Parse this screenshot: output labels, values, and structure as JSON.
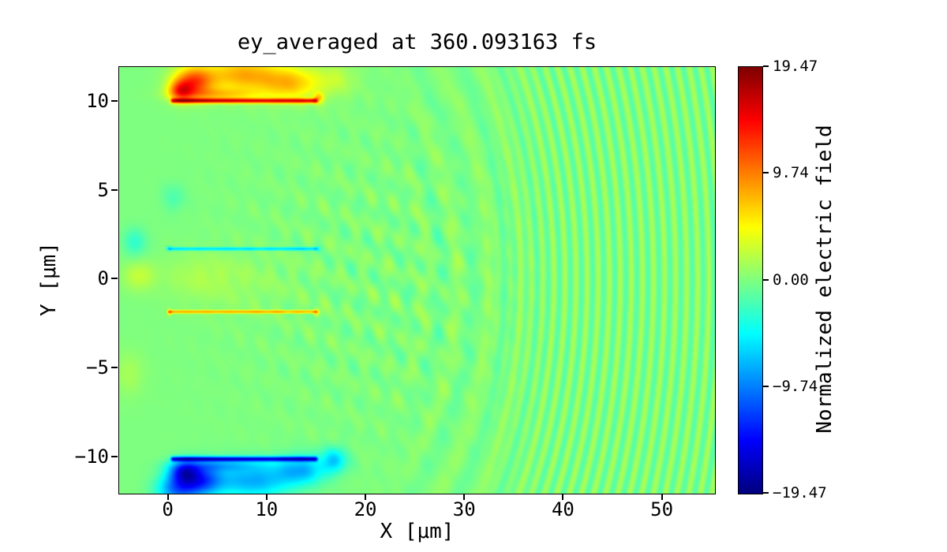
{
  "chart_data": {
    "type": "heatmap",
    "title": "ey_averaged at 360.093163 fs",
    "xlabel": "X [μm]",
    "ylabel": "Y [μm]",
    "colorbar_label": "Normalized electric field",
    "colormap": "jet",
    "vmin": -19.47,
    "vmax": 19.47,
    "xlim": [
      -5.0,
      55.3
    ],
    "ylim": [
      -12.05,
      11.95
    ],
    "grid": false,
    "x_ticks": [
      {
        "value": 0,
        "label": "0"
      },
      {
        "value": 10,
        "label": "10"
      },
      {
        "value": 20,
        "label": "20"
      },
      {
        "value": 30,
        "label": "30"
      },
      {
        "value": 40,
        "label": "40"
      },
      {
        "value": 50,
        "label": "50"
      }
    ],
    "y_ticks": [
      {
        "value": 10,
        "label": "10"
      },
      {
        "value": 5,
        "label": "5"
      },
      {
        "value": 0,
        "label": "0"
      },
      {
        "value": -5,
        "label": "−5"
      },
      {
        "value": -10,
        "label": "−10"
      }
    ],
    "colorbar_ticks": [
      {
        "value": 19.47,
        "label": "19.47"
      },
      {
        "value": 9.74,
        "label": "9.74"
      },
      {
        "value": 0,
        "label": "0.00"
      },
      {
        "value": -9.74,
        "label": "−9.74"
      },
      {
        "value": -19.47,
        "label": "−19.47"
      }
    ],
    "background_value": 0,
    "features": [
      {
        "kind": "hline",
        "y": 10.05,
        "x0": 0,
        "x1": 15.3,
        "sy": 0.13,
        "amp": 14
      },
      {
        "kind": "gauss",
        "x": 1.2,
        "y": 10.6,
        "sx": 1.2,
        "sy": 0.55,
        "amp": 9
      },
      {
        "kind": "gauss",
        "x": 2.5,
        "y": 11.1,
        "sx": 2.0,
        "sy": 0.85,
        "amp": 11
      },
      {
        "kind": "gauss",
        "x": 7.5,
        "y": 11.5,
        "sx": 4.0,
        "sy": 1.0,
        "amp": 8
      },
      {
        "kind": "gauss",
        "x": 12.5,
        "y": 11.0,
        "sx": 3.0,
        "sy": 0.9,
        "amp": 6.5
      },
      {
        "kind": "gauss",
        "x": 15.2,
        "y": 10.2,
        "sx": 0.5,
        "sy": 0.3,
        "amp": 6
      },
      {
        "kind": "gauss",
        "x": 5.0,
        "y": 10.4,
        "sx": 4.0,
        "sy": 0.35,
        "amp": 5
      },
      {
        "kind": "gauss",
        "x": 17.0,
        "y": 11.3,
        "sx": 2.0,
        "sy": 1.0,
        "amp": 2
      },
      {
        "kind": "hline",
        "y": -10.1,
        "x0": 0,
        "x1": 15.3,
        "sy": 0.13,
        "amp": -14
      },
      {
        "kind": "gauss",
        "x": 1.5,
        "y": -10.8,
        "sx": 1.5,
        "sy": 0.6,
        "amp": -10
      },
      {
        "kind": "gauss",
        "x": 3.2,
        "y": -11.3,
        "sx": 2.2,
        "sy": 0.9,
        "amp": -11
      },
      {
        "kind": "gauss",
        "x": 8.5,
        "y": -11.3,
        "sx": 4.0,
        "sy": 1.0,
        "amp": -8
      },
      {
        "kind": "gauss",
        "x": 13.5,
        "y": -10.7,
        "sx": 2.5,
        "sy": 0.8,
        "amp": -7
      },
      {
        "kind": "gauss",
        "x": 16.8,
        "y": -10.15,
        "sx": 1.3,
        "sy": 0.7,
        "amp": -6
      },
      {
        "kind": "gauss",
        "x": 5.0,
        "y": -10.45,
        "sx": 4.0,
        "sy": 0.35,
        "amp": -5
      },
      {
        "kind": "gauss",
        "x": 0.8,
        "y": -11.8,
        "sx": 2.0,
        "sy": 0.8,
        "amp": -9
      },
      {
        "kind": "hline",
        "y": 1.72,
        "x0": -0.3,
        "x1": 15.3,
        "sy": 0.09,
        "amp": -6.5
      },
      {
        "kind": "hline",
        "y": -1.82,
        "x0": -0.3,
        "x1": 15.3,
        "sy": 0.09,
        "amp": 8
      },
      {
        "kind": "gauss",
        "x": 0.1,
        "y": -1.85,
        "sx": 0.25,
        "sy": 0.18,
        "amp": 5
      },
      {
        "kind": "gauss",
        "x": 15.0,
        "y": -1.85,
        "sx": 0.3,
        "sy": 0.2,
        "amp": 5
      },
      {
        "kind": "gauss",
        "x": 0.0,
        "y": 1.75,
        "sx": 0.3,
        "sy": 0.15,
        "amp": -3
      },
      {
        "kind": "gauss",
        "x": 15.1,
        "y": 1.72,
        "sx": 0.3,
        "sy": 0.15,
        "amp": -3
      },
      {
        "kind": "gauss",
        "x": -3.4,
        "y": 2.1,
        "sx": 1.2,
        "sy": 0.8,
        "amp": -3
      },
      {
        "kind": "gauss",
        "x": -3.0,
        "y": 0.2,
        "sx": 1.6,
        "sy": 0.8,
        "amp": 2.6
      },
      {
        "kind": "gauss",
        "x": 3.0,
        "y": 0.2,
        "sx": 3.5,
        "sy": 1.2,
        "amp": 1.2
      },
      {
        "kind": "gauss",
        "x": -4.0,
        "y": -5.3,
        "sx": 1.5,
        "sy": 1.2,
        "amp": 1.5
      },
      {
        "kind": "gauss",
        "x": 0.5,
        "y": 4.6,
        "sx": 1.2,
        "sy": 0.8,
        "amp": -1.8
      },
      {
        "kind": "gauss",
        "x": 7.0,
        "y": -0.1,
        "sx": 6.0,
        "sy": 1.6,
        "amp": 0.9
      },
      {
        "kind": "ripples",
        "cx": 15.2,
        "cy": 0,
        "wavelength": 1.12,
        "amp": 1.6,
        "y_scale": 1.04,
        "fade_start": 30,
        "fade_len": 10
      },
      {
        "kind": "ripples",
        "cx": 15.2,
        "cy": 0,
        "wavelength": 3.3,
        "amp": 0.8,
        "y_scale": 1.04,
        "fade_start": 21,
        "fade_len": 7,
        "fade_end": 40,
        "fade_out_len": 8
      },
      {
        "kind": "speckle",
        "cx": 18,
        "cy": 0,
        "sx": 12,
        "sy": 8.5,
        "amp": 0.9
      },
      {
        "kind": "speckle",
        "cx": 26,
        "cy": 0,
        "sx": 8,
        "sy": 10,
        "amp": 0.5
      }
    ]
  }
}
